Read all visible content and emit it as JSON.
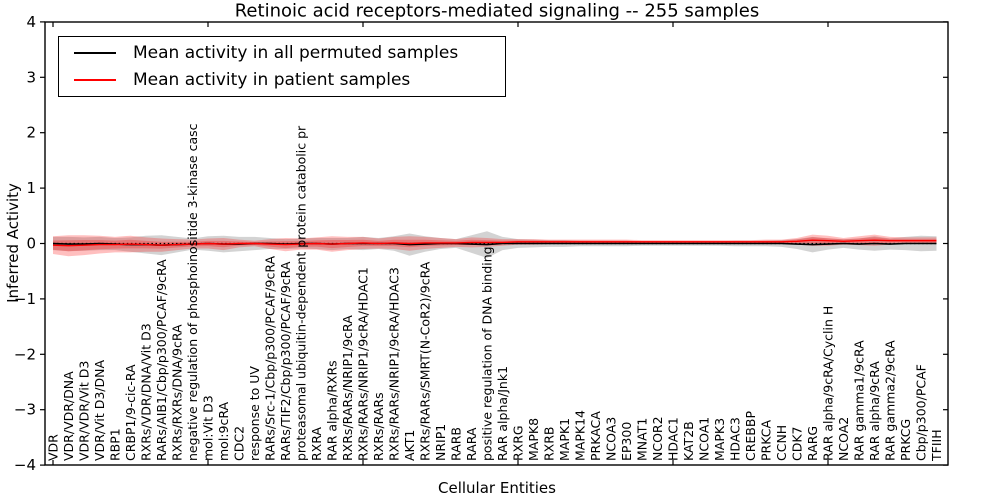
{
  "colors": {
    "axis": "#000000",
    "permuted_line": "#000000",
    "patient_line": "#ff0000",
    "permuted_band": "rgba(122,122,122,0.33)",
    "patient_band": "rgba(255,0,0,0.25)",
    "background": "#ffffff"
  },
  "legend": {
    "items": [
      {
        "label": "Mean activity in all permuted samples",
        "color": "#000000"
      },
      {
        "label": "Mean activity in patient samples",
        "color": "#ff0000"
      }
    ]
  },
  "chart_data": {
    "type": "line",
    "title": "Retinoic acid receptors-mediated signaling -- 255 samples",
    "xlabel": "Cellular Entities",
    "ylabel": "Inferred Activity",
    "ylim": [
      -4,
      4
    ],
    "yticks": [
      4,
      3,
      2,
      1,
      0,
      -1,
      -2,
      -3,
      -4
    ],
    "ytick_labels": [
      "4",
      "3",
      "2",
      "1",
      "0",
      "−1",
      "−2",
      "−3",
      "−4"
    ],
    "x_major_ticks": [
      0,
      10,
      20,
      30,
      40,
      50
    ],
    "grid": false,
    "legend_position": "upper left",
    "categories": [
      "VDR",
      "VDR/VDR/DNA",
      "VDR/VDR/Vit D3",
      "VDR/Vit D3/DNA",
      "RBP1",
      "CRBP1/9-cic-RA",
      "RXRs/VDR/DNA/Vit D3",
      "RARs/AIB1/Cbp/p300/PCAF/9cRA",
      "RXRs/RXRs/DNA/9cRA",
      "negative regulation of phosphoinositide 3-kinase casc",
      "mol:Vit D3",
      "mol:9cRA",
      "CDC2",
      "response to UV",
      "RARs/Src-1/Cbp/p300/PCAF/9cRA",
      "RARs/TIF2/Cbp/p300/PCAF/9cRA",
      "proteasomal ubiquitin-dependent protein catabolic pr",
      "RXRA",
      "RAR alpha/RXRs",
      "RXRs/RARs/NRIP1/9cRA",
      "RXRs/RARs/NRIP1/9cRA/HDAC1",
      "RXRs/RARs",
      "RXRs/RARs/NRIP1/9cRA/HDAC3",
      "AKT1",
      "RXRs/RARs/SMRT(N-CoR2)/9cRA",
      "NRIP1",
      "RARB",
      "RARA",
      "positive regulation of DNA binding",
      "RAR alpha/Jnk1",
      "RXRG",
      "MAPK8",
      "RXRB",
      "MAPK1",
      "MAPK14",
      "PRKACA",
      "NCOA3",
      "EP300",
      "MNAT1",
      "NCOR2",
      "HDAC1",
      "KAT2B",
      "NCOA1",
      "MAPK3",
      "HDAC3",
      "CREBBP",
      "PRKCA",
      "CCNH",
      "CDK7",
      "RARG",
      "RAR alpha/9cRA/Cyclin H",
      "NCOA2",
      "RAR gamma1/9cRA",
      "RAR alpha/9cRA",
      "RAR gamma2/9cRA",
      "PRKCG",
      "Cbp/p300/PCAF",
      "TFIIH"
    ],
    "series": [
      {
        "name": "Mean activity in all permuted samples",
        "color": "#000000",
        "style": "solid",
        "values": [
          0,
          -0.01,
          -0.01,
          0,
          -0.01,
          -0.02,
          -0.02,
          -0.03,
          -0.02,
          -0.01,
          0,
          -0.01,
          -0.01,
          0,
          0,
          -0.01,
          0,
          0,
          -0.01,
          0,
          0,
          0,
          0,
          -0.02,
          -0.01,
          0,
          0,
          -0.01,
          -0.02,
          0,
          0,
          0,
          0,
          0,
          0,
          0,
          0,
          0,
          0,
          0,
          0,
          0,
          0,
          0,
          0,
          0,
          0,
          0,
          -0.01,
          -0.02,
          -0.01,
          0,
          -0.01,
          0,
          -0.01,
          0,
          0,
          0
        ]
      },
      {
        "name": "Mean activity in patient samples",
        "color": "#ff0000",
        "style": "solid",
        "values": [
          -0.03,
          -0.04,
          -0.03,
          -0.02,
          -0.02,
          -0.01,
          -0.02,
          -0.03,
          -0.02,
          -0.01,
          0,
          -0.01,
          0,
          0,
          -0.01,
          -0.02,
          -0.01,
          0,
          -0.01,
          0,
          0.01,
          0,
          0.01,
          0,
          0.01,
          0.01,
          0.01,
          0.02,
          0.02,
          0.02,
          0.03,
          0.03,
          0.03,
          0.03,
          0.03,
          0.03,
          0.03,
          0.03,
          0.03,
          0.03,
          0.03,
          0.03,
          0.03,
          0.03,
          0.03,
          0.03,
          0.03,
          0.03,
          0.04,
          0.06,
          0.05,
          0.04,
          0.05,
          0.06,
          0.05,
          0.05,
          0.05,
          0.05
        ]
      },
      {
        "name": "zero-reference",
        "color": "#000000",
        "style": "dotted",
        "constant": 0
      }
    ],
    "bands": [
      {
        "name": "permuted-std",
        "color": "rgba(122,122,122,0.33)",
        "center_series": 0,
        "half_width": [
          0.12,
          0.13,
          0.12,
          0.12,
          0.11,
          0.13,
          0.16,
          0.18,
          0.14,
          0.1,
          0.13,
          0.15,
          0.13,
          0.12,
          0.1,
          0.09,
          0.09,
          0.1,
          0.11,
          0.1,
          0.12,
          0.1,
          0.13,
          0.2,
          0.14,
          0.1,
          0.08,
          0.16,
          0.24,
          0.12,
          0.08,
          0.07,
          0.06,
          0.06,
          0.05,
          0.05,
          0.05,
          0.05,
          0.04,
          0.04,
          0.04,
          0.04,
          0.04,
          0.04,
          0.05,
          0.05,
          0.05,
          0.06,
          0.09,
          0.14,
          0.1,
          0.08,
          0.1,
          0.13,
          0.1,
          0.12,
          0.14,
          0.13
        ]
      },
      {
        "name": "patient-std",
        "color": "rgba(255,0,0,0.25)",
        "center_series": 1,
        "half_width": [
          0.16,
          0.19,
          0.18,
          0.16,
          0.14,
          0.15,
          0.13,
          0.12,
          0.1,
          0.08,
          0.09,
          0.11,
          0.07,
          0.05,
          0.09,
          0.12,
          0.1,
          0.11,
          0.14,
          0.12,
          0.11,
          0.09,
          0.11,
          0.13,
          0.11,
          0.09,
          0.07,
          0.09,
          0.08,
          0.06,
          0.05,
          0.05,
          0.04,
          0.04,
          0.04,
          0.04,
          0.04,
          0.04,
          0.03,
          0.03,
          0.03,
          0.03,
          0.03,
          0.03,
          0.03,
          0.03,
          0.04,
          0.04,
          0.06,
          0.1,
          0.09,
          0.06,
          0.08,
          0.1,
          0.07,
          0.06,
          0.06,
          0.06
        ]
      }
    ]
  }
}
